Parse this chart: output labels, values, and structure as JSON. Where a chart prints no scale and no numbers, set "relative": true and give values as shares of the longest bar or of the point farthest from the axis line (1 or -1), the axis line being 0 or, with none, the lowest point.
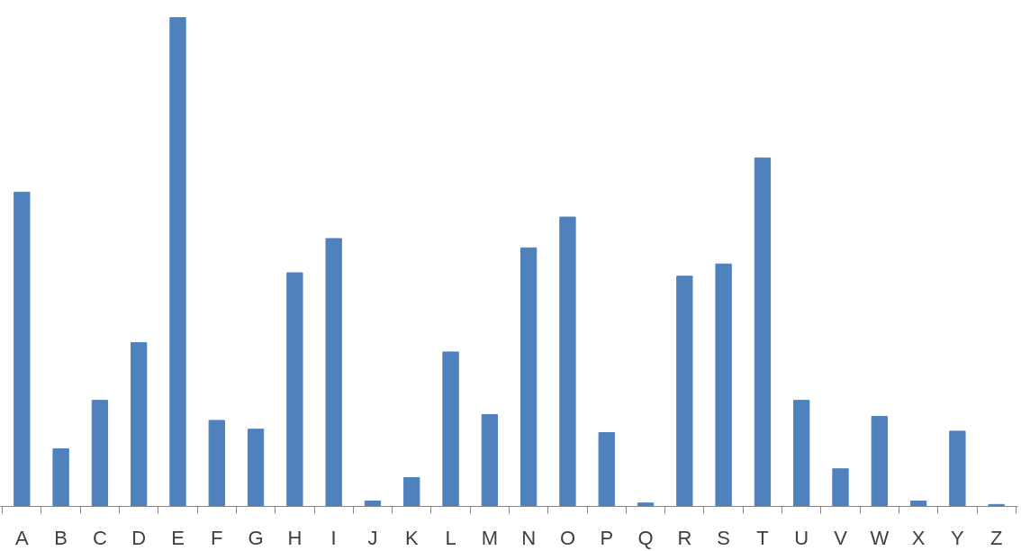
{
  "chart_data": {
    "type": "bar",
    "relative": true,
    "color": "#4f81bd",
    "grid": false,
    "categories": [
      "A",
      "B",
      "C",
      "D",
      "E",
      "F",
      "G",
      "H",
      "I",
      "J",
      "K",
      "L",
      "M",
      "N",
      "O",
      "P",
      "Q",
      "R",
      "S",
      "T",
      "U",
      "V",
      "W",
      "X",
      "Y",
      "Z"
    ],
    "values": [
      0.643,
      0.118,
      0.217,
      0.335,
      1,
      0.176,
      0.158,
      0.478,
      0.548,
      0.011,
      0.059,
      0.316,
      0.188,
      0.529,
      0.592,
      0.151,
      0.007,
      0.471,
      0.496,
      0.713,
      0.217,
      0.077,
      0.184,
      0.011,
      0.154,
      0.004
    ]
  }
}
